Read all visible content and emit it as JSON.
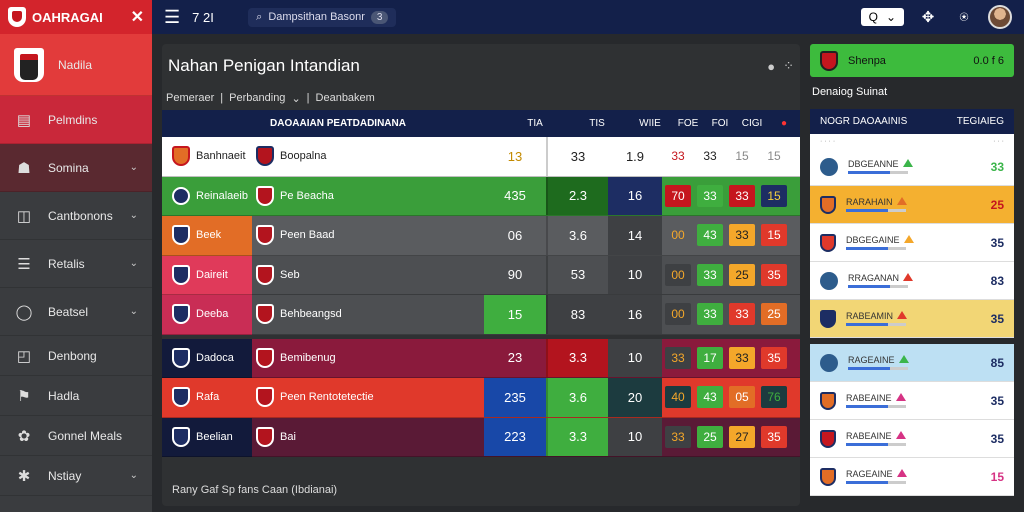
{
  "app": {
    "title": "OAHRAGAI"
  },
  "sidebar": {
    "items": [
      {
        "label": "Nadila",
        "icon": "shield-icon"
      },
      {
        "label": "Pelmdins",
        "icon": "calendar-icon"
      },
      {
        "label": "Somina",
        "icon": "users-icon"
      },
      {
        "label": "Cantbonons",
        "icon": "chat-icon"
      },
      {
        "label": "Retalis",
        "icon": "list-icon"
      },
      {
        "label": "Beatsel",
        "icon": "ball-icon"
      },
      {
        "label": "Denbong",
        "icon": "bag-icon"
      },
      {
        "label": "Hadla",
        "icon": "flag-icon"
      },
      {
        "label": "Gonnel Meals",
        "icon": "gear-icon"
      },
      {
        "label": "Nstiay",
        "icon": "tool-icon"
      }
    ]
  },
  "topbar": {
    "time": "7 2I",
    "search_text": "Dampsithan Basonr",
    "search_count": "3",
    "search_button": "Q"
  },
  "main": {
    "title": "Nahan Penigan Intandian",
    "crumbs": [
      "Pemeraer",
      "Perbanding",
      "Deanbakem"
    ],
    "head": {
      "team": "DAOAAIAN PEATDADINANA",
      "cols": [
        "TIA",
        "TIS",
        "WIIE",
        "FOE",
        "FOI",
        "CIGI"
      ]
    },
    "rows": [
      {
        "t1": "Banhnaeit",
        "t2": "Boopalna",
        "c1": "13",
        "c2": "33",
        "c3": "1.9",
        "b1": "33",
        "b2": "33",
        "b3": "15",
        "b4": "15"
      },
      {
        "t1": "Reinalaeib",
        "t2": "Pe Beacha",
        "c1": "435",
        "c2": "2.3",
        "c3": "16",
        "b1": "70",
        "b2": "33",
        "b3": "33",
        "b4": "15"
      },
      {
        "t1": "Beek",
        "t2": "Peen Baad",
        "c1": "06",
        "c2": "3.6",
        "c3": "14",
        "b1": "00",
        "b2": "43",
        "b3": "33",
        "b4": "15"
      },
      {
        "t1": "Daireit",
        "t2": "Seb",
        "c1": "90",
        "c2": "53",
        "c3": "10",
        "b1": "00",
        "b2": "33",
        "b3": "25",
        "b4": "35"
      },
      {
        "t1": "Deeba",
        "t2": "Behbeangsd",
        "c1": "15",
        "c2": "83",
        "c3": "16",
        "b1": "00",
        "b2": "33",
        "b3": "33",
        "b4": "25"
      },
      {
        "t1": "Dadoca",
        "t2": "Bemibenug",
        "c1": "23",
        "c2": "3.3",
        "c3": "10",
        "b1": "33",
        "b2": "17",
        "b3": "33",
        "b4": "35"
      },
      {
        "t1": "Rafa",
        "t2": "Peen Rentotetectie",
        "c1": "235",
        "c2": "3.6",
        "c3": "20",
        "b1": "40",
        "b2": "43",
        "b3": "05",
        "b4": "76"
      },
      {
        "t1": "Beelian",
        "t2": "Bai",
        "c1": "223",
        "c2": "3.3",
        "c3": "10",
        "b1": "33",
        "b2": "25",
        "b3": "27",
        "b4": "35"
      }
    ],
    "footer": "Rany Gaf Sp fans Caan (Ibdianai)"
  },
  "right": {
    "top_label": "Shenpa",
    "top_value": "0.0 f 6",
    "subtitle": "Denaiog Suinat",
    "head": {
      "left": "NOGR DAOAAINIS",
      "right": "TEGIAIEG"
    },
    "rows": [
      {
        "name": "DBGEANNE",
        "value": "33"
      },
      {
        "name": "RARAHAIN",
        "value": "25"
      },
      {
        "name": "DBGEGAINE",
        "value": "35"
      },
      {
        "name": "RRAGANAN",
        "value": "83"
      },
      {
        "name": "RABEAMIN",
        "value": "35"
      },
      {
        "name": "RAGEAINE",
        "value": "85"
      },
      {
        "name": "RABEAINE",
        "value": "35"
      },
      {
        "name": "RABEAINE",
        "value": "35"
      },
      {
        "name": "RAGEAINE",
        "value": "15"
      }
    ]
  },
  "colors": {
    "accent": "#d3242c",
    "nav": "#13204a",
    "green": "#3dbb3d"
  }
}
